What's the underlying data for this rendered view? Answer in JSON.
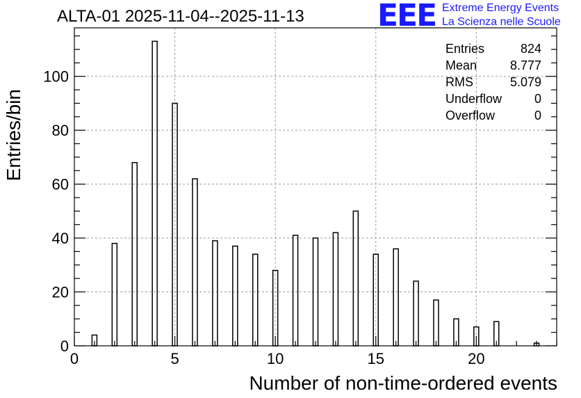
{
  "chart_data": {
    "type": "bar",
    "title": "ALTA-01 2025-11-04--2025-11-13",
    "xlabel": "Number of non-time-ordered events",
    "ylabel": "Entries/bin",
    "xlim": [
      0,
      24
    ],
    "ylim": [
      0,
      118
    ],
    "xticks": [
      0,
      5,
      10,
      15,
      20
    ],
    "yticks": [
      0,
      20,
      40,
      60,
      80,
      100
    ],
    "grid": true,
    "x": [
      1,
      2,
      3,
      4,
      5,
      6,
      7,
      8,
      9,
      10,
      11,
      12,
      13,
      14,
      15,
      16,
      17,
      18,
      19,
      20,
      21,
      22,
      23
    ],
    "values": [
      4,
      38,
      68,
      113,
      90,
      62,
      39,
      37,
      34,
      28,
      41,
      40,
      42,
      50,
      34,
      36,
      24,
      17,
      10,
      7,
      9,
      0,
      1
    ],
    "stats": {
      "Entries": "824",
      "Mean": "8.777",
      "RMS": "5.079",
      "Underflow": "0",
      "Overflow": "0"
    }
  },
  "logo": {
    "mark": "EEE",
    "line1": "Extreme Energy Events",
    "line2": "La Scienza nelle Scuole"
  }
}
